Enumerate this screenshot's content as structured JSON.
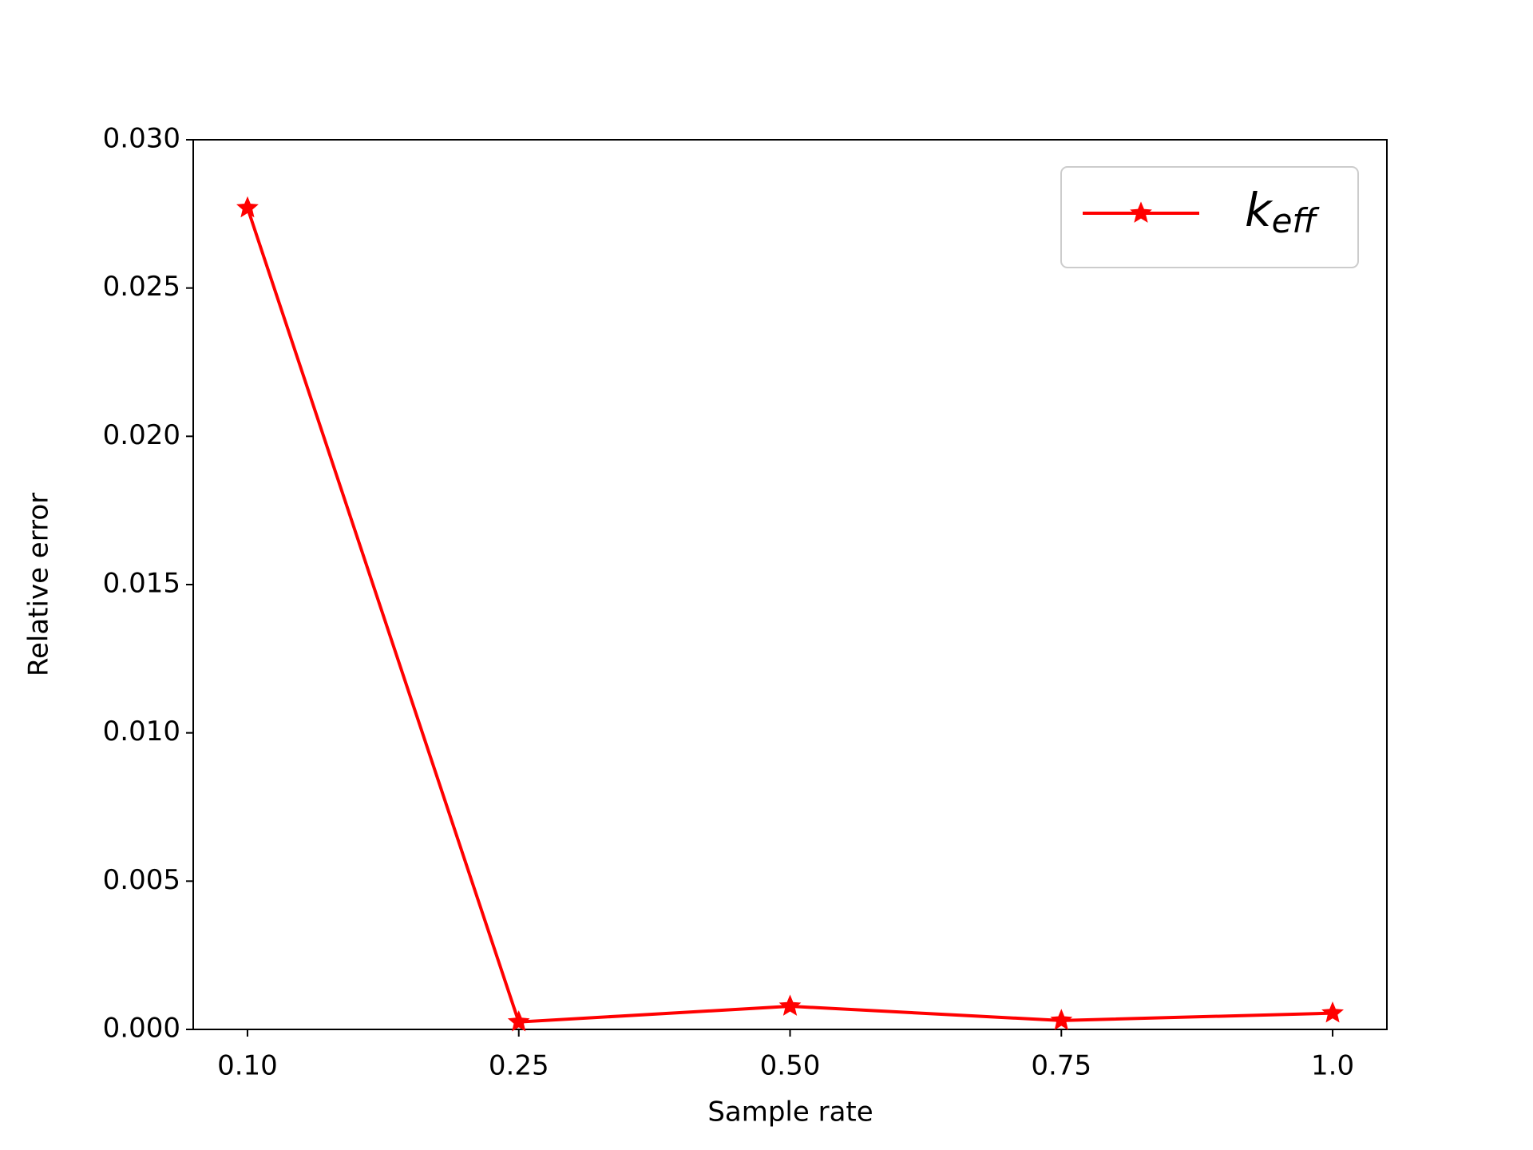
{
  "chart_data": {
    "type": "line",
    "x_label": "Sample rate",
    "y_label": "Relative error",
    "categories": [
      "0.10",
      "0.25",
      "0.50",
      "0.75",
      "1.0"
    ],
    "series": [
      {
        "name": "keff",
        "color": "#ff0000",
        "values": [
          0.0277,
          0.00025,
          0.00078,
          0.0003,
          0.00055
        ]
      }
    ],
    "ylim": [
      0,
      0.03
    ],
    "yticks": [
      {
        "value": 0,
        "label": "0.000"
      },
      {
        "value": 0.005,
        "label": "0.005"
      },
      {
        "value": 0.01,
        "label": "0.010"
      },
      {
        "value": 0.015,
        "label": "0.015"
      },
      {
        "value": 0.02,
        "label": "0.020"
      },
      {
        "value": 0.025,
        "label": "0.025"
      },
      {
        "value": 0.03,
        "label": "0.030"
      }
    ],
    "legend": "upper right",
    "grid": false
  }
}
